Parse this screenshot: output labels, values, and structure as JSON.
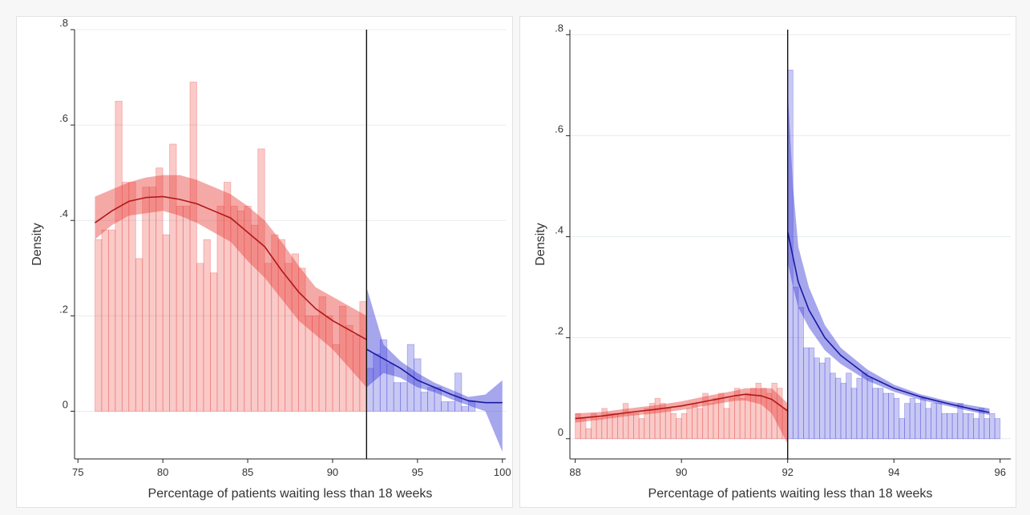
{
  "chart_data": [
    {
      "type": "bar",
      "xlabel": "Percentage of patients waiting less than 18 weeks",
      "ylabel": "Density",
      "xlim": [
        74.8,
        100.2
      ],
      "ylim": [
        -0.1,
        0.8
      ],
      "xticks": [
        75,
        80,
        85,
        90,
        95,
        100
      ],
      "xtick_labels": [
        "75",
        "80",
        "85",
        "90",
        "95",
        "100"
      ],
      "yticks": [
        0,
        0.2,
        0.4,
        0.6,
        0.8
      ],
      "ytick_labels": [
        "0",
        ".2",
        ".4",
        ".6",
        ".8"
      ],
      "grid": true,
      "cutoff": 92,
      "colors": {
        "left": "#e8403b",
        "right": "#3a3ad6"
      },
      "series": [
        {
          "side": "left",
          "histogram": {
            "start": 76,
            "width": 0.4,
            "values": [
              0.36,
              0.38,
              0.38,
              0.65,
              0.48,
              0.48,
              0.32,
              0.47,
              0.47,
              0.51,
              0.37,
              0.56,
              0.43,
              0.43,
              0.69,
              0.31,
              0.36,
              0.29,
              0.43,
              0.48,
              0.43,
              0.42,
              0.43,
              0.39,
              0.55,
              0.31,
              0.37,
              0.36,
              0.31,
              0.33,
              0.3,
              0.2,
              0.2,
              0.24,
              0.2,
              0.14,
              0.22,
              0.18,
              0.16,
              0.23
            ]
          },
          "fit": {
            "x": [
              76,
              77,
              78,
              79,
              80,
              81,
              82,
              83,
              84,
              85,
              86,
              87,
              88,
              89,
              90,
              91,
              92
            ],
            "y": [
              0.395,
              0.42,
              0.44,
              0.448,
              0.45,
              0.444,
              0.435,
              0.42,
              0.405,
              0.375,
              0.345,
              0.295,
              0.25,
              0.215,
              0.19,
              0.17,
              0.15
            ],
            "ci_lower": [
              0.36,
              0.39,
              0.41,
              0.415,
              0.42,
              0.41,
              0.395,
              0.375,
              0.355,
              0.315,
              0.28,
              0.235,
              0.19,
              0.16,
              0.13,
              0.09,
              0.05
            ],
            "ci_upper": [
              0.45,
              0.465,
              0.48,
              0.49,
              0.495,
              0.495,
              0.485,
              0.47,
              0.455,
              0.43,
              0.4,
              0.355,
              0.305,
              0.26,
              0.24,
              0.22,
              0.2
            ]
          }
        },
        {
          "side": "right",
          "histogram": {
            "start": 92,
            "width": 0.4,
            "values": [
              0.09,
              0.12,
              0.15,
              0.1,
              0.06,
              0.06,
              0.14,
              0.11,
              0.04,
              0.05,
              0.05,
              0.02,
              0.02,
              0.08,
              0.01,
              0.02
            ]
          },
          "fit": {
            "x": [
              92,
              93,
              94,
              95,
              96,
              97,
              98,
              99,
              100
            ],
            "y": [
              0.13,
              0.11,
              0.09,
              0.065,
              0.05,
              0.035,
              0.022,
              0.018,
              0.018
            ],
            "ci_lower": [
              0.05,
              0.08,
              0.07,
              0.05,
              0.04,
              0.025,
              0.012,
              0.0,
              -0.085
            ],
            "ci_upper": [
              0.26,
              0.14,
              0.105,
              0.08,
              0.06,
              0.045,
              0.03,
              0.035,
              0.065
            ]
          }
        }
      ]
    },
    {
      "type": "bar",
      "xlabel": "Percentage of patients waiting less than 18 weeks",
      "ylabel": "Density",
      "xlim": [
        87.9,
        96.2
      ],
      "ylim": [
        -0.04,
        0.81
      ],
      "xticks": [
        88,
        90,
        92,
        94,
        96
      ],
      "xtick_labels": [
        "88",
        "90",
        "92",
        "94",
        "96"
      ],
      "yticks": [
        0,
        0.2,
        0.4,
        0.6,
        0.8
      ],
      "ytick_labels": [
        "0",
        ".2",
        ".4",
        ".6",
        ".8"
      ],
      "grid": true,
      "cutoff": 92,
      "colors": {
        "left": "#e8403b",
        "right": "#3a3ad6"
      },
      "series": [
        {
          "side": "left",
          "histogram": {
            "start": 88,
            "width": 0.1,
            "values": [
              0.05,
              0.04,
              0.02,
              0.05,
              0.04,
              0.06,
              0.05,
              0.05,
              0.05,
              0.07,
              0.05,
              0.05,
              0.04,
              0.06,
              0.07,
              0.08,
              0.07,
              0.06,
              0.05,
              0.04,
              0.05,
              0.06,
              0.07,
              0.06,
              0.09,
              0.07,
              0.08,
              0.09,
              0.06,
              0.08,
              0.1,
              0.08,
              0.09,
              0.1,
              0.11,
              0.1,
              0.09,
              0.11,
              0.1,
              0.06
            ]
          },
          "fit": {
            "x": [
              88,
              88.5,
              89,
              89.5,
              90,
              90.5,
              91,
              91.2,
              91.5,
              91.7,
              92
            ],
            "y": [
              0.04,
              0.045,
              0.052,
              0.058,
              0.065,
              0.075,
              0.085,
              0.088,
              0.085,
              0.078,
              0.055
            ],
            "ci_lower": [
              0.032,
              0.038,
              0.045,
              0.05,
              0.057,
              0.066,
              0.075,
              0.076,
              0.068,
              0.05,
              -0.01
            ],
            "ci_upper": [
              0.05,
              0.053,
              0.06,
              0.066,
              0.074,
              0.085,
              0.095,
              0.1,
              0.1,
              0.1,
              0.07
            ]
          }
        },
        {
          "side": "right",
          "histogram": {
            "start": 92,
            "width": 0.1,
            "values": [
              0.73,
              0.3,
              0.26,
              0.18,
              0.18,
              0.16,
              0.15,
              0.16,
              0.13,
              0.12,
              0.11,
              0.13,
              0.1,
              0.12,
              0.13,
              0.12,
              0.1,
              0.1,
              0.09,
              0.09,
              0.08,
              0.04,
              0.07,
              0.08,
              0.07,
              0.08,
              0.06,
              0.07,
              0.07,
              0.05,
              0.05,
              0.05,
              0.07,
              0.05,
              0.05,
              0.04,
              0.06,
              0.04,
              0.05,
              0.04
            ]
          },
          "fit": {
            "x": [
              92,
              92.1,
              92.2,
              92.4,
              92.7,
              93,
              93.5,
              94,
              94.5,
              95,
              95.5,
              95.8
            ],
            "y": [
              0.41,
              0.36,
              0.31,
              0.255,
              0.2,
              0.165,
              0.125,
              0.1,
              0.083,
              0.07,
              0.058,
              0.052
            ],
            "ci_lower": [
              0.35,
              0.3,
              0.26,
              0.22,
              0.175,
              0.148,
              0.115,
              0.093,
              0.077,
              0.065,
              0.053,
              0.047
            ],
            "ci_upper": [
              0.69,
              0.5,
              0.38,
              0.3,
              0.225,
              0.18,
              0.137,
              0.107,
              0.088,
              0.075,
              0.065,
              0.06
            ]
          }
        }
      ]
    }
  ]
}
